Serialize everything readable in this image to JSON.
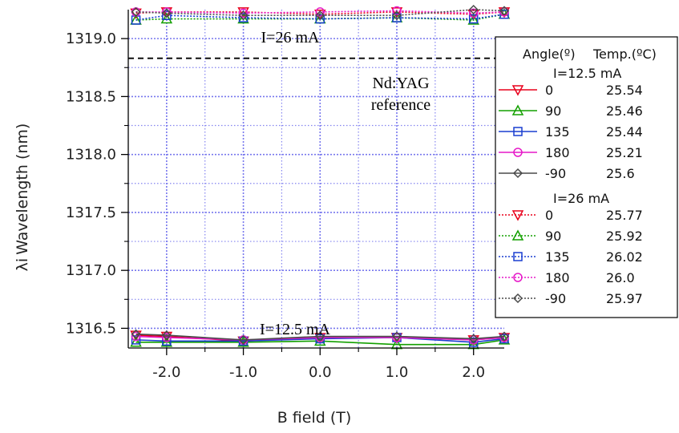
{
  "chart_data": {
    "type": "line",
    "xlabel": "B field (T)",
    "ylabel_symbol": "λi",
    "ylabel_text": "Wavelength (nm)",
    "xlim": [
      -2.5,
      2.4
    ],
    "ylim": [
      1316.33,
      1319.25
    ],
    "x_ticks": [
      -2.0,
      -1.0,
      0.0,
      1.0,
      2.0
    ],
    "x_tick_labels": [
      "-2.0",
      "-1.0",
      "0.0",
      "1.0",
      "2.0"
    ],
    "y_ticks": [
      1316.5,
      1317.0,
      1317.5,
      1318.0,
      1318.5,
      1319.0
    ],
    "y_tick_labels": [
      "1316.5",
      "1317.0",
      "1317.5",
      "1318.0",
      "1318.5",
      "1319.0"
    ],
    "grid": true,
    "reference_line": {
      "y": 1318.83,
      "label_line1": "Nd:YAG",
      "label_line2": "reference"
    },
    "annotations": {
      "high_current": "I=26 mA",
      "low_current": "I=12.5 mA"
    },
    "legend": {
      "placement": "right",
      "header_angle": "Angle(º)",
      "header_temp": "Temp.(ºC)",
      "group1_title": "I=12.5 mA",
      "group2_title": "I=26 mA"
    },
    "x": [
      -2.4,
      -2.0,
      -1.0,
      0.0,
      1.0,
      2.0,
      2.4
    ],
    "series": [
      {
        "group": "I=12.5 mA",
        "angle": "0",
        "temp": "25.54",
        "color": "#e8001c",
        "marker": "triangle-down",
        "dash": "solid",
        "values": [
          1316.44,
          1316.43,
          1316.39,
          1316.42,
          1316.42,
          1316.4,
          1316.42
        ]
      },
      {
        "group": "I=12.5 mA",
        "angle": "90",
        "temp": "25.46",
        "color": "#13a000",
        "marker": "triangle-up",
        "dash": "solid",
        "values": [
          1316.38,
          1316.38,
          1316.38,
          1316.39,
          1316.36,
          1316.36,
          1316.4
        ]
      },
      {
        "group": "I=12.5 mA",
        "angle": "135",
        "temp": "25.44",
        "color": "#1a3fd0",
        "marker": "square",
        "dash": "solid",
        "values": [
          1316.4,
          1316.39,
          1316.39,
          1316.41,
          1316.42,
          1316.38,
          1316.41
        ]
      },
      {
        "group": "I=12.5 mA",
        "angle": "180",
        "temp": "25.21",
        "color": "#e619c8",
        "marker": "circle",
        "dash": "solid",
        "values": [
          1316.43,
          1316.42,
          1316.4,
          1316.42,
          1316.42,
          1316.4,
          1316.42
        ]
      },
      {
        "group": "I=12.5 mA",
        "angle": "-90",
        "temp": "25.6",
        "color": "#4a4a4a",
        "marker": "diamond",
        "dash": "solid",
        "values": [
          1316.45,
          1316.44,
          1316.4,
          1316.43,
          1316.43,
          1316.41,
          1316.43
        ]
      },
      {
        "group": "I=26 mA",
        "angle": "0",
        "temp": "25.77",
        "color": "#e8001c",
        "marker": "triangle-down",
        "dash": "dotted",
        "values": [
          1319.22,
          1319.23,
          1319.23,
          1319.21,
          1319.23,
          1319.21,
          1319.23
        ]
      },
      {
        "group": "I=26 mA",
        "angle": "90",
        "temp": "25.92",
        "color": "#13a000",
        "marker": "triangle-up",
        "dash": "dotted",
        "values": [
          1319.16,
          1319.17,
          1319.17,
          1319.17,
          1319.18,
          1319.16,
          1319.21
        ]
      },
      {
        "group": "I=26 mA",
        "angle": "135",
        "temp": "26.02",
        "color": "#1a3fd0",
        "marker": "square",
        "dash": "dotted",
        "values": [
          1319.16,
          1319.2,
          1319.18,
          1319.17,
          1319.18,
          1319.17,
          1319.21
        ]
      },
      {
        "group": "I=26 mA",
        "angle": "180",
        "temp": "26.0",
        "color": "#e619c8",
        "marker": "circle",
        "dash": "dotted",
        "values": [
          1319.23,
          1319.23,
          1319.22,
          1319.23,
          1319.24,
          1319.22,
          1319.23
        ]
      },
      {
        "group": "I=26 mA",
        "angle": "-90",
        "temp": "25.97",
        "color": "#4a4a4a",
        "marker": "diamond",
        "dash": "dotted",
        "values": [
          1319.23,
          1319.22,
          1319.2,
          1319.2,
          1319.2,
          1319.25,
          1319.24
        ]
      }
    ],
    "colors": {
      "grid": "#7878ee",
      "axis": "#000000",
      "reference": "#000000"
    }
  }
}
